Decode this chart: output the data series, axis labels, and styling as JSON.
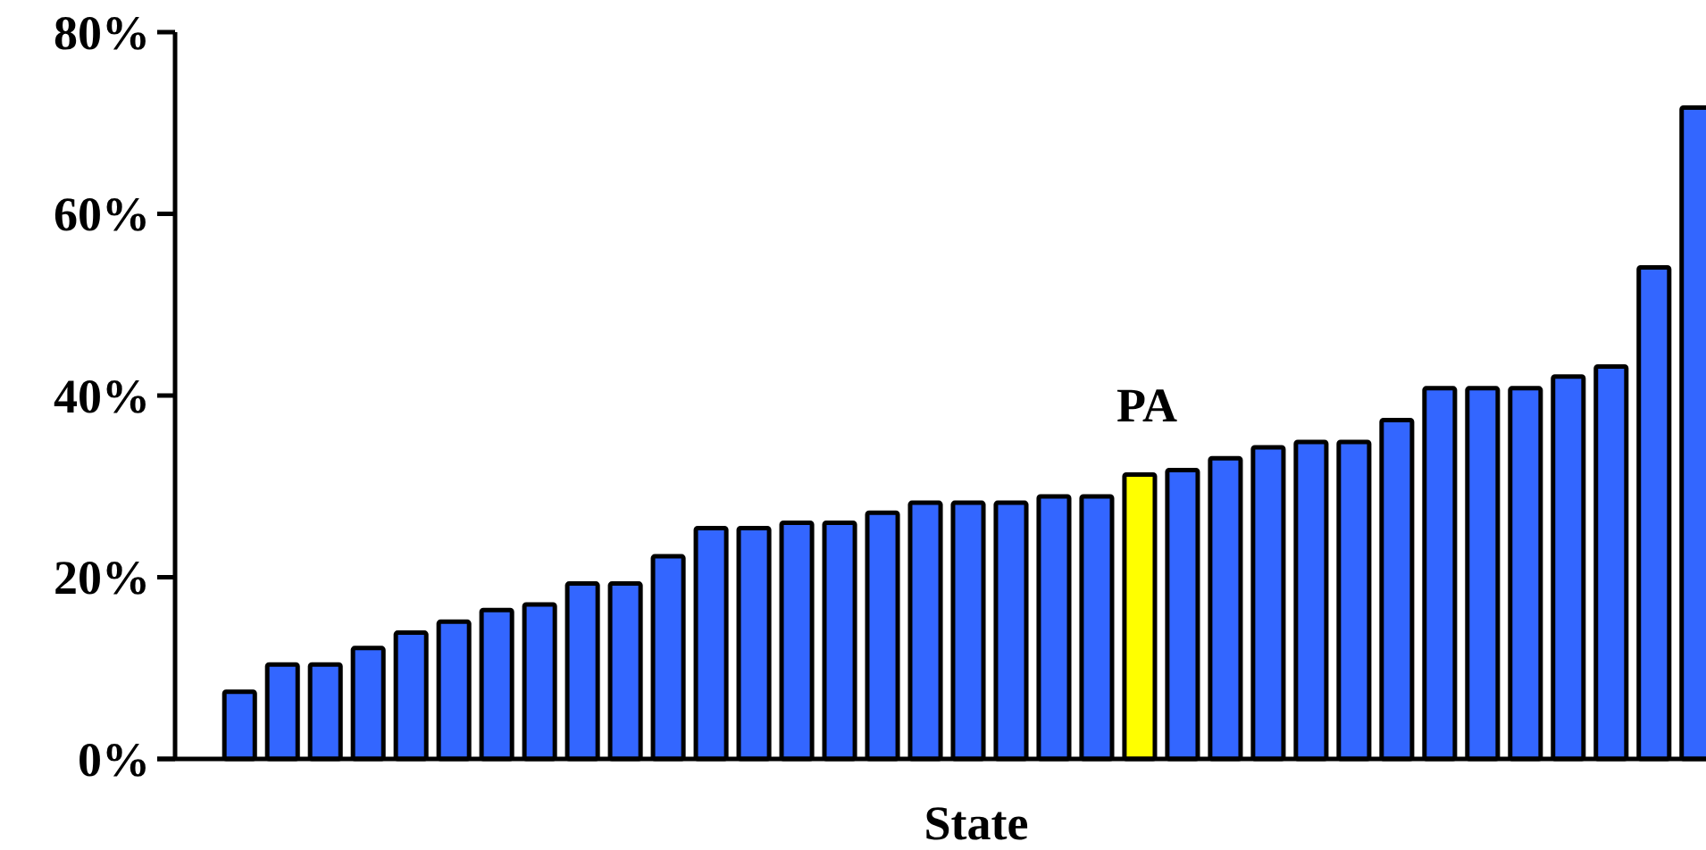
{
  "chart_data": {
    "type": "bar",
    "xlabel": "State",
    "categories": [
      null,
      null,
      null,
      null,
      null,
      null,
      null,
      null,
      null,
      null,
      null,
      null,
      null,
      null,
      null,
      null,
      null,
      null,
      null,
      null,
      null,
      null,
      null,
      null,
      null,
      null,
      null,
      null,
      null,
      null,
      null,
      null,
      null,
      null,
      null
    ],
    "values": [
      7.4,
      10.4,
      10.4,
      12.2,
      13.9,
      15.1,
      16.4,
      17.0,
      19.3,
      19.3,
      22.3,
      25.4,
      25.4,
      26.0,
      26.0,
      27.1,
      28.2,
      28.2,
      28.2,
      28.9,
      28.9,
      31.3,
      31.8,
      33.1,
      34.3,
      34.9,
      34.9,
      37.3,
      40.8,
      40.8,
      40.8,
      42.1,
      43.2,
      54.1,
      71.7
    ],
    "colors": [
      "#3366ff",
      "#3366ff",
      "#3366ff",
      "#3366ff",
      "#3366ff",
      "#3366ff",
      "#3366ff",
      "#3366ff",
      "#3366ff",
      "#3366ff",
      "#3366ff",
      "#3366ff",
      "#3366ff",
      "#3366ff",
      "#3366ff",
      "#3366ff",
      "#3366ff",
      "#3366ff",
      "#3366ff",
      "#3366ff",
      "#3366ff",
      "#ffff00",
      "#3366ff",
      "#3366ff",
      "#3366ff",
      "#3366ff",
      "#3366ff",
      "#3366ff",
      "#3366ff",
      "#3366ff",
      "#3366ff",
      "#3366ff",
      "#3366ff",
      "#3366ff",
      "#3366ff"
    ],
    "annotations": [
      "PA"
    ],
    "ylim": [
      0,
      80
    ],
    "yticks": [
      {
        "value": 0,
        "label": "0%"
      },
      {
        "value": 20,
        "label": "20%"
      },
      {
        "value": 40,
        "label": "40%"
      },
      {
        "value": 60,
        "label": "60%"
      },
      {
        "value": 80,
        "label": "80%"
      }
    ],
    "grid": false
  }
}
